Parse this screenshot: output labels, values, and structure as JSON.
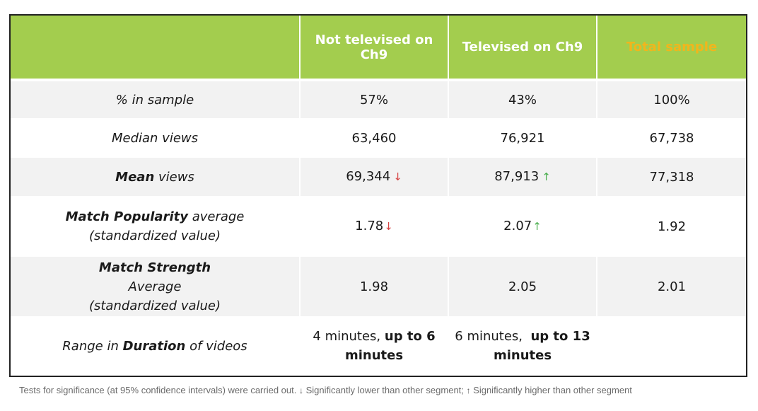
{
  "header": {
    "col1": "Not televised on Ch9",
    "col2": "Televised on Ch9",
    "col3": "Total sample"
  },
  "rows": [
    {
      "label": "% in sample",
      "values": [
        "57%",
        "43%",
        "100%"
      ]
    },
    {
      "label": "Median views",
      "values": [
        "63,460",
        "76,921",
        "67,738"
      ]
    },
    {
      "label_bold": "Mean",
      "label_rest": " views",
      "values": [
        "69,344",
        "87,913",
        "77,318"
      ],
      "flags": [
        "lower",
        "higher",
        ""
      ]
    },
    {
      "label_bold": "Match Popularity",
      "label_rest": " average (standardized value)",
      "values": [
        "1.78",
        "2.07",
        "1.92"
      ],
      "flags": [
        "lower",
        "higher",
        ""
      ]
    },
    {
      "label_bold": "Match Strength",
      "label_line2": "Average",
      "label_line3": "(standardized value)",
      "values": [
        "1.98",
        "2.05",
        "2.01"
      ]
    },
    {
      "label_pre": "Range in ",
      "label_bold": "Duration",
      "label_rest": " of videos",
      "values_pre": [
        "4 minutes, ",
        "6 minutes,  "
      ],
      "values_bold": [
        "up to 6 minutes",
        "up to 13 minutes"
      ],
      "values": [
        "",
        "",
        ""
      ]
    }
  ],
  "footnote": {
    "part1": "Tests for significance (at 95% confidence intervals) were carried out.",
    "part2": "Significantly lower than other segment;",
    "part3": "Significantly higher than other segment"
  },
  "icons": {
    "lower": "↓",
    "higher": "↑"
  },
  "colors": {
    "header_bg": "#a3cd4e",
    "total_header_text": "#f2b51c",
    "down_arrow": "#d64545",
    "up_arrow": "#4caf50",
    "row_shade": "#f2f2f2"
  }
}
